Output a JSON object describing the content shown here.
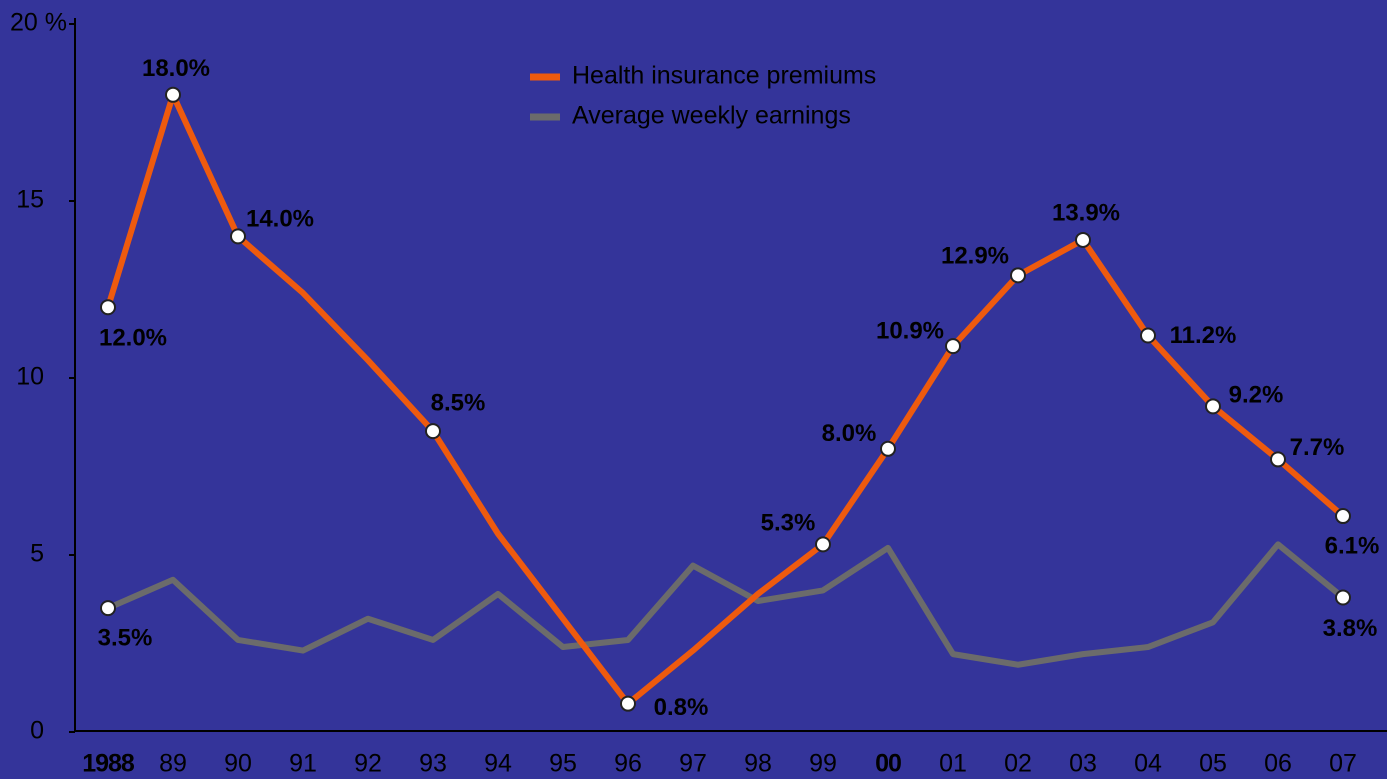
{
  "chart_data": {
    "type": "line",
    "categories": [
      "1988",
      "89",
      "90",
      "91",
      "92",
      "93",
      "94",
      "95",
      "96",
      "97",
      "98",
      "99",
      "00",
      "01",
      "02",
      "03",
      "04",
      "05",
      "06",
      "07"
    ],
    "series": [
      {
        "name": "Health insurance premiums",
        "color": "#ee5a0e",
        "values": [
          12.0,
          18.0,
          14.0,
          12.4,
          10.5,
          8.5,
          5.6,
          3.2,
          0.8,
          2.3,
          3.9,
          5.3,
          8.0,
          10.9,
          12.9,
          13.9,
          11.2,
          9.2,
          7.7,
          6.1
        ],
        "value_labels": [
          "12.0%",
          "18.0%",
          "14.0%",
          null,
          null,
          "8.5%",
          null,
          null,
          "0.8%",
          null,
          null,
          "5.3%",
          "8.0%",
          "10.9%",
          "12.9%",
          "13.9%",
          "11.2%",
          "9.2%",
          "7.7%",
          "6.1%"
        ]
      },
      {
        "name": "Average weekly earnings",
        "color": "#6b6b6b",
        "values": [
          3.5,
          4.3,
          2.6,
          2.3,
          3.2,
          2.6,
          3.9,
          2.4,
          2.6,
          4.7,
          3.7,
          4.0,
          5.2,
          2.2,
          1.9,
          2.2,
          2.4,
          3.1,
          5.3,
          3.8
        ],
        "value_labels": [
          "3.5%",
          null,
          null,
          null,
          null,
          null,
          null,
          null,
          null,
          null,
          null,
          null,
          null,
          null,
          null,
          null,
          null,
          null,
          null,
          "3.8%"
        ]
      }
    ],
    "ylim": [
      0,
      20
    ],
    "yticks": [
      0,
      5,
      10,
      15,
      {
        "value": 20,
        "label": "20 %"
      }
    ],
    "legend": "top"
  }
}
